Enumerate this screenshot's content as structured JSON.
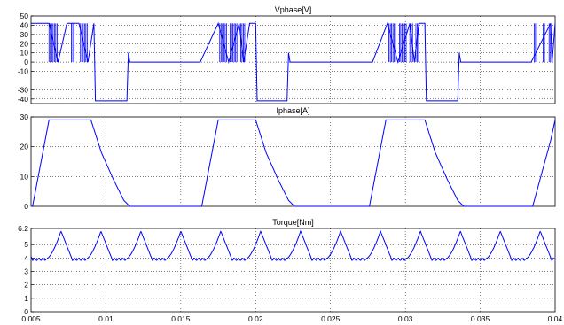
{
  "chart_data": [
    {
      "type": "line",
      "title": "Vphase[V]",
      "xlim": [
        0.005,
        0.04
      ],
      "ylim": [
        -45,
        50
      ],
      "yticks": [
        50,
        40,
        30,
        20,
        10,
        0,
        -10,
        -30,
        -40
      ],
      "grid": true,
      "series": [
        {
          "color": "#0000ff",
          "description": "Switching phase voltage: +42 V chopping bursts, -42 V demagnetization, 0 V idle",
          "x": [
            0.005,
            0.0056,
            0.0062,
            0.0068,
            0.0074,
            0.0082,
            0.0088,
            0.0092,
            0.0093,
            0.0114,
            0.0115,
            0.0116,
            0.0163,
            0.0175,
            0.0182,
            0.0189,
            0.0192,
            0.0196,
            0.02,
            0.0201,
            0.0221,
            0.0222,
            0.0223,
            0.0278,
            0.0288,
            0.0295,
            0.0303,
            0.0306,
            0.0309,
            0.0313,
            0.0314,
            0.0335,
            0.0336,
            0.0337,
            0.0384,
            0.0397,
            0.0398,
            0.04
          ],
          "y": [
            42,
            42,
            42,
            0,
            42,
            42,
            0,
            42,
            -42,
            -42,
            10,
            0,
            0,
            42,
            0,
            42,
            0,
            42,
            42,
            -42,
            -42,
            10,
            0,
            0,
            42,
            0,
            42,
            0,
            42,
            42,
            -42,
            -42,
            10,
            0,
            0,
            42,
            0,
            42
          ]
        }
      ]
    },
    {
      "type": "line",
      "title": "Iphase[A]",
      "xlim": [
        0.005,
        0.04
      ],
      "ylim": [
        0,
        30
      ],
      "yticks": [
        30,
        20,
        10,
        0
      ],
      "grid": true,
      "series": [
        {
          "color": "#0000ff",
          "description": "Phase current: linear rise to ~29 A, flat top, decay to zero",
          "x": [
            0.005,
            0.0051,
            0.0062,
            0.009,
            0.0097,
            0.0105,
            0.0112,
            0.0116,
            0.0164,
            0.0175,
            0.02,
            0.0207,
            0.0215,
            0.0222,
            0.0226,
            0.0276,
            0.0287,
            0.0313,
            0.032,
            0.0328,
            0.0335,
            0.0339,
            0.0385,
            0.0397,
            0.04
          ],
          "y": [
            0,
            0,
            29,
            29,
            18,
            9,
            2,
            0,
            0,
            29,
            29,
            18,
            9,
            2,
            0,
            0,
            29,
            29,
            18,
            9,
            2,
            0,
            0,
            22,
            29
          ]
        }
      ]
    },
    {
      "type": "line",
      "title": "Torque[Nm]",
      "xlim": [
        0.005,
        0.04
      ],
      "ylim": [
        0,
        6.2
      ],
      "yticks": [
        "6.2",
        "5",
        "4",
        "3",
        "2",
        "1",
        "0"
      ],
      "xticks": [
        "0.005",
        "0.01",
        "0.015",
        "0.02",
        "0.025",
        "0.03",
        "0.035",
        "0.04"
      ],
      "grid": true,
      "series": [
        {
          "color": "#0000ff",
          "description": "Torque ripple: period ~2.67 ms, swings between ~3.9 and ~6.0 Nm",
          "period": 0.002667,
          "min": 3.9,
          "max": 6.0,
          "first_peak": 0.007
        }
      ]
    }
  ]
}
